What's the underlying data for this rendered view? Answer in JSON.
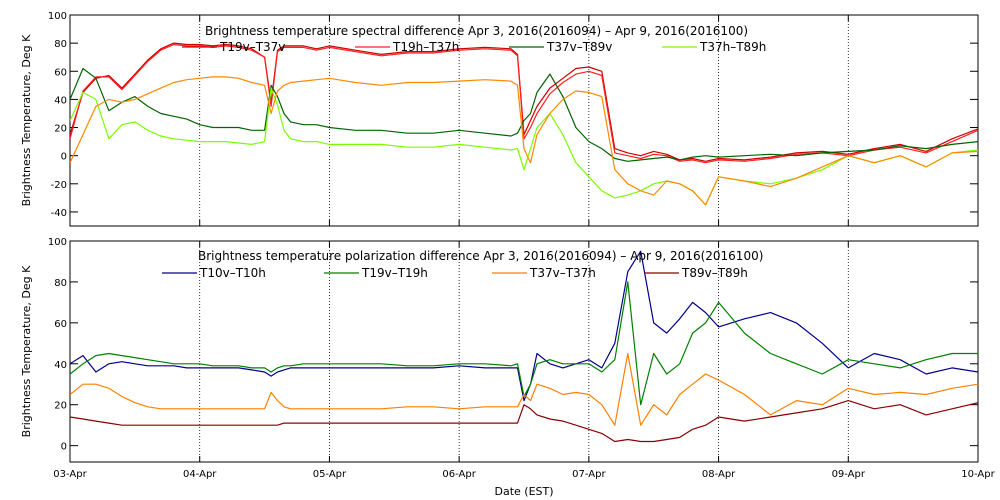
{
  "chart_data": [
    {
      "type": "line",
      "title": "Brightness temperature spectral difference    Apr  3, 2016(2016094) – Apr  9, 2016(2016100)",
      "ylabel": "Brightness Temperature, Deg K",
      "xlabel": "",
      "ylim": [
        -50,
        100
      ],
      "yticks": [
        -40,
        -20,
        0,
        20,
        40,
        60,
        80,
        100
      ],
      "xlim": [
        0,
        7
      ],
      "xtick_labels": [
        "03-Apr",
        "04-Apr",
        "05-Apr",
        "06-Apr",
        "07-Apr",
        "08-Apr",
        "09-Apr",
        "10-Apr"
      ],
      "grid": "vertical dotted at day boundaries",
      "x": [
        0.0,
        0.1,
        0.2,
        0.3,
        0.4,
        0.5,
        0.6,
        0.7,
        0.8,
        0.9,
        1.0,
        1.1,
        1.2,
        1.3,
        1.4,
        1.5,
        1.55,
        1.6,
        1.65,
        1.7,
        1.8,
        1.9,
        2.0,
        2.2,
        2.4,
        2.6,
        2.8,
        3.0,
        3.2,
        3.4,
        3.45,
        3.5,
        3.55,
        3.6,
        3.7,
        3.8,
        3.9,
        4.0,
        4.1,
        4.2,
        4.3,
        4.4,
        4.5,
        4.6,
        4.7,
        4.8,
        4.9,
        5.0,
        5.2,
        5.4,
        5.6,
        5.8,
        6.0,
        6.2,
        6.4,
        6.6,
        6.8,
        7.0
      ],
      "series": [
        {
          "name": "T19v–T37v",
          "color": "#cc0000",
          "values": [
            15,
            45,
            55,
            57,
            48,
            58,
            68,
            76,
            80,
            79,
            79,
            78,
            79,
            78,
            76,
            70,
            38,
            75,
            78,
            78,
            78,
            76,
            78,
            75,
            72,
            74,
            74,
            76,
            77,
            76,
            72,
            15,
            25,
            35,
            48,
            55,
            62,
            63,
            60,
            5,
            2,
            0,
            3,
            1,
            -3,
            -2,
            -4,
            -2,
            -3,
            -1,
            2,
            3,
            1,
            5,
            8,
            3,
            12,
            19
          ]
        },
        {
          "name": "T19h–T37h",
          "color": "#ff2020",
          "values": [
            12,
            46,
            56,
            56,
            47,
            57,
            67,
            75,
            79,
            78,
            78,
            77,
            78,
            77,
            75,
            70,
            35,
            74,
            77,
            77,
            77,
            75,
            77,
            74,
            71,
            73,
            73,
            75,
            76,
            75,
            71,
            12,
            20,
            30,
            44,
            52,
            58,
            60,
            57,
            2,
            0,
            -2,
            1,
            0,
            -4,
            -3,
            -5,
            -3,
            -4,
            -2,
            1,
            2,
            0,
            4,
            6,
            2,
            10,
            18
          ]
        },
        {
          "name": "T37v–T89v",
          "color": "#006400",
          "values": [
            40,
            62,
            55,
            32,
            38,
            42,
            35,
            30,
            28,
            26,
            22,
            20,
            20,
            20,
            18,
            18,
            50,
            42,
            30,
            24,
            22,
            22,
            20,
            18,
            18,
            16,
            16,
            18,
            16,
            14,
            16,
            25,
            30,
            45,
            58,
            42,
            20,
            10,
            5,
            -2,
            -4,
            -3,
            -2,
            -1,
            -3,
            -1,
            0,
            -1,
            0,
            1,
            0,
            2,
            3,
            4,
            7,
            5,
            8,
            10
          ]
        },
        {
          "name": "T37h–T89h",
          "color": "#7cfc00",
          "values": [
            25,
            45,
            40,
            12,
            22,
            24,
            18,
            14,
            12,
            11,
            10,
            10,
            10,
            9,
            8,
            10,
            48,
            36,
            18,
            12,
            10,
            10,
            8,
            8,
            8,
            6,
            6,
            8,
            6,
            4,
            5,
            -10,
            5,
            20,
            30,
            15,
            -5,
            -15,
            -25,
            -30,
            -28,
            -25,
            -20,
            -18,
            -20,
            -25,
            -35,
            -15,
            -18,
            -20,
            -16,
            -10,
            0,
            -5,
            0,
            -8,
            2,
            4
          ]
        },
        {
          "name": "",
          "color": "#ff8800",
          "values": [
            -5,
            15,
            35,
            40,
            38,
            40,
            44,
            48,
            52,
            54,
            55,
            56,
            56,
            55,
            52,
            50,
            30,
            46,
            50,
            52,
            53,
            54,
            55,
            52,
            50,
            52,
            52,
            53,
            54,
            53,
            50,
            5,
            -5,
            15,
            30,
            40,
            46,
            45,
            42,
            -10,
            -20,
            -25,
            -28,
            -18,
            -20,
            -25,
            -35,
            -15,
            -18,
            -22,
            -16,
            -8,
            0,
            -5,
            0,
            -8,
            2,
            3
          ]
        }
      ]
    },
    {
      "type": "line",
      "title": "Brightness temperature polarization difference    Apr  3, 2016(2016094) – Apr  9, 2016(2016100)",
      "ylabel": "Brightness Temperature, Deg K",
      "xlabel": "Date (EST)",
      "ylim": [
        -8,
        100
      ],
      "yticks": [
        0,
        20,
        40,
        60,
        80,
        100
      ],
      "xlim": [
        0,
        7
      ],
      "xtick_labels": [
        "03-Apr",
        "04-Apr",
        "05-Apr",
        "06-Apr",
        "07-Apr",
        "08-Apr",
        "09-Apr",
        "10-Apr"
      ],
      "grid": "vertical dotted at day boundaries",
      "x": [
        0.0,
        0.1,
        0.2,
        0.3,
        0.4,
        0.5,
        0.6,
        0.7,
        0.8,
        0.9,
        1.0,
        1.1,
        1.2,
        1.3,
        1.4,
        1.5,
        1.55,
        1.6,
        1.65,
        1.7,
        1.8,
        1.9,
        2.0,
        2.2,
        2.4,
        2.6,
        2.8,
        3.0,
        3.2,
        3.4,
        3.45,
        3.5,
        3.55,
        3.6,
        3.7,
        3.8,
        3.9,
        4.0,
        4.1,
        4.2,
        4.3,
        4.4,
        4.5,
        4.6,
        4.7,
        4.8,
        4.9,
        5.0,
        5.2,
        5.4,
        5.6,
        5.8,
        6.0,
        6.2,
        6.4,
        6.6,
        6.8,
        7.0
      ],
      "series": [
        {
          "name": "T10v–T10h",
          "color": "#00008b",
          "values": [
            40,
            44,
            36,
            40,
            41,
            40,
            39,
            39,
            39,
            38,
            38,
            38,
            38,
            38,
            37,
            36,
            34,
            36,
            37,
            38,
            38,
            38,
            38,
            38,
            38,
            38,
            38,
            39,
            38,
            38,
            38,
            22,
            30,
            45,
            40,
            38,
            40,
            42,
            38,
            50,
            85,
            95,
            60,
            55,
            62,
            70,
            65,
            58,
            62,
            65,
            60,
            50,
            38,
            45,
            42,
            35,
            38,
            36
          ]
        },
        {
          "name": "T19v–T19h",
          "color": "#008000",
          "values": [
            35,
            40,
            44,
            45,
            44,
            43,
            42,
            41,
            40,
            40,
            40,
            39,
            39,
            39,
            38,
            38,
            36,
            38,
            39,
            39,
            40,
            40,
            40,
            40,
            40,
            39,
            39,
            40,
            40,
            39,
            40,
            24,
            30,
            40,
            42,
            40,
            40,
            40,
            36,
            42,
            80,
            20,
            45,
            35,
            40,
            55,
            60,
            70,
            55,
            45,
            40,
            35,
            42,
            40,
            38,
            42,
            45,
            45
          ]
        },
        {
          "name": "T37v–T37h",
          "color": "#ff8000",
          "values": [
            25,
            30,
            30,
            28,
            24,
            21,
            19,
            18,
            18,
            18,
            18,
            18,
            18,
            18,
            18,
            18,
            26,
            22,
            19,
            18,
            18,
            18,
            18,
            18,
            18,
            19,
            19,
            18,
            19,
            19,
            19,
            25,
            22,
            30,
            28,
            25,
            26,
            25,
            20,
            10,
            45,
            10,
            20,
            15,
            25,
            30,
            35,
            32,
            25,
            15,
            22,
            20,
            28,
            25,
            26,
            25,
            28,
            30
          ]
        },
        {
          "name": "T89v–T89h",
          "color": "#8b0000",
          "values": [
            14,
            13,
            12,
            11,
            10,
            10,
            10,
            10,
            10,
            10,
            10,
            10,
            10,
            10,
            10,
            10,
            10,
            10,
            11,
            11,
            11,
            11,
            11,
            11,
            11,
            11,
            11,
            11,
            11,
            11,
            11,
            20,
            18,
            15,
            13,
            12,
            10,
            8,
            6,
            2,
            3,
            2,
            2,
            3,
            4,
            8,
            10,
            14,
            12,
            14,
            16,
            18,
            22,
            18,
            20,
            15,
            18,
            21
          ]
        }
      ]
    }
  ]
}
